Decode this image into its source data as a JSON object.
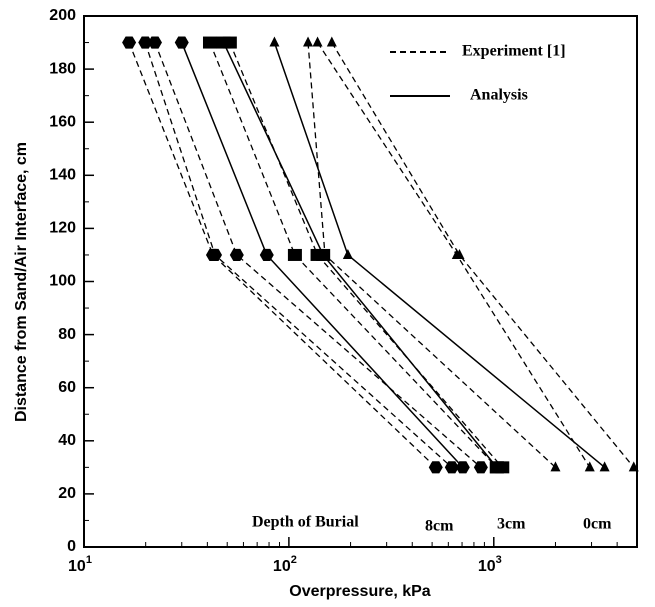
{
  "chart_data": {
    "type": "line",
    "x_label": "Overpressure, kPa",
    "y_label": "Distance from Sand/Air Interface, cm",
    "xscale": "log",
    "xlim": [
      10,
      5000
    ],
    "ylim": [
      0,
      200
    ],
    "xticks": [
      {
        "value": 10,
        "label": "10",
        "sup": "1"
      },
      {
        "value": 100,
        "label": "10",
        "sup": "2"
      },
      {
        "value": 1000,
        "label": "10",
        "sup": "3"
      }
    ],
    "xminorticks": [
      20,
      30,
      40,
      50,
      60,
      70,
      80,
      90,
      200,
      300,
      400,
      500,
      600,
      700,
      800,
      900,
      2000,
      3000,
      4000,
      5000
    ],
    "yticks": [
      0,
      20,
      40,
      60,
      80,
      100,
      120,
      140,
      160,
      180,
      200
    ],
    "yminorticks": [
      10,
      30,
      50,
      70,
      90,
      110,
      130,
      150,
      170,
      190
    ],
    "legend": [
      {
        "name": "Experiment [1]",
        "dash": "6,4"
      },
      {
        "name": "Analysis",
        "dash": "none"
      }
    ],
    "color": "#000000",
    "series": [
      {
        "kind": "experiment",
        "marker": "hexagon",
        "x": [
          16.6,
          42.6,
          521
        ],
        "y": [
          190,
          110,
          30
        ]
      },
      {
        "kind": "experiment",
        "marker": "hexagon",
        "x": [
          19.9,
          43.6,
          624
        ],
        "y": [
          190,
          110,
          30
        ]
      },
      {
        "kind": "experiment",
        "marker": "hexagon",
        "x": [
          22.2,
          55.7,
          865
        ],
        "y": [
          190,
          110,
          30
        ]
      },
      {
        "kind": "experiment",
        "marker": "square",
        "x": [
          41.2,
          107,
          1035
        ],
        "y": [
          190,
          110,
          30
        ]
      },
      {
        "kind": "experiment",
        "marker": "square",
        "x": [
          51.5,
          138,
          1100
        ],
        "y": [
          190,
          110,
          30
        ]
      },
      {
        "kind": "experiment",
        "marker": "triangle",
        "x": [
          124,
          150,
          2000
        ],
        "y": [
          190,
          110,
          30
        ]
      },
      {
        "kind": "experiment",
        "marker": "triangle",
        "x": [
          138,
          660,
          2940
        ],
        "y": [
          190,
          110,
          30
        ]
      },
      {
        "kind": "experiment",
        "marker": "triangle",
        "x": [
          162,
          680,
          4820
        ],
        "y": [
          190,
          110,
          30
        ]
      },
      {
        "kind": "analysis",
        "marker": "hexagon",
        "x": [
          30,
          78,
          706
        ],
        "y": [
          190,
          110,
          30
        ]
      },
      {
        "kind": "analysis",
        "marker": "square",
        "x": [
          48,
          147,
          1035
        ],
        "y": [
          190,
          110,
          30
        ]
      },
      {
        "kind": "analysis",
        "marker": "triangle",
        "x": [
          85,
          194,
          3475
        ],
        "y": [
          190,
          110,
          30
        ]
      }
    ],
    "annotations": [
      "Depth of Burial",
      "8cm",
      "3cm",
      "0cm"
    ]
  }
}
